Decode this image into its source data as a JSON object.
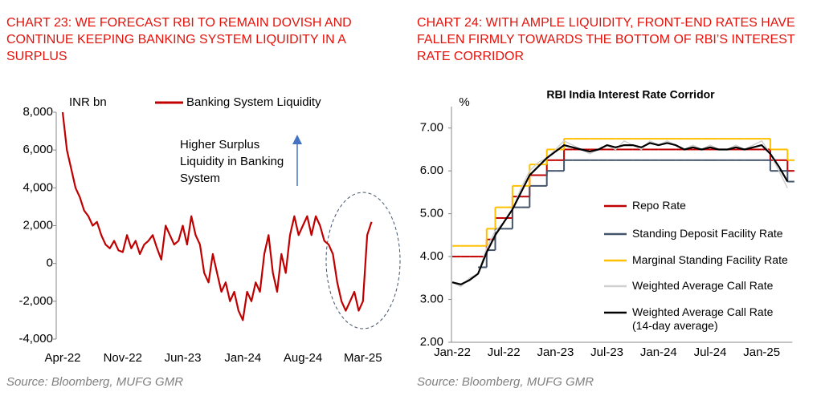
{
  "chart_data": [
    {
      "type": "line",
      "title": "CHART 23: WE FORECAST RBI TO REMAIN DOVISH AND CONTINUE KEEPING BANKING SYSTEM LIQUIDITY IN A SURPLUS",
      "y_label": "INR bn",
      "annotation": "Higher Surplus Liquidity in Banking System",
      "source": "Source: Bloomberg, MUFG GMR",
      "legend": "top",
      "categories": [
        "Apr-22",
        null,
        null,
        null,
        null,
        null,
        null,
        null,
        null,
        null,
        null,
        null,
        null,
        null,
        "Nov-22",
        null,
        null,
        null,
        null,
        null,
        null,
        null,
        null,
        null,
        null,
        null,
        null,
        null,
        "Jun-23",
        null,
        null,
        null,
        null,
        null,
        null,
        null,
        null,
        null,
        null,
        null,
        null,
        null,
        "Jan-24",
        null,
        null,
        null,
        null,
        null,
        null,
        null,
        null,
        null,
        null,
        null,
        null,
        null,
        "Aug-24",
        null,
        null,
        null,
        null,
        null,
        null,
        null,
        null,
        null,
        null,
        null,
        null,
        null,
        "Mar-25",
        null,
        null
      ],
      "series": [
        {
          "name": "Banking System Liquidity",
          "color": "#c00000",
          "values": [
            8000,
            6000,
            5000,
            4000,
            3500,
            2800,
            2500,
            2000,
            2200,
            1500,
            1000,
            800,
            1200,
            700,
            600,
            1500,
            800,
            1200,
            500,
            1000,
            1200,
            1500,
            800,
            200,
            2000,
            1500,
            1000,
            1200,
            2000,
            1000,
            2500,
            1500,
            1000,
            -500,
            -1000,
            500,
            -500,
            -1500,
            -1000,
            -2000,
            -1500,
            -2500,
            -3000,
            -1500,
            -2000,
            -1000,
            -1500,
            500,
            1500,
            -500,
            -1500,
            500,
            -500,
            1500,
            2500,
            1500,
            2000,
            2500,
            1500,
            2500,
            2000,
            1200,
            1000,
            500,
            -1000,
            -2000,
            -2500,
            -2000,
            -1500,
            -2500,
            -2000,
            1500,
            2200
          ]
        }
      ],
      "ylim": [
        -4000,
        8000
      ],
      "yticks": [
        {
          "value": -4000,
          "label": "-4,000"
        },
        {
          "value": -2000,
          "label": "-2,000"
        },
        0,
        {
          "value": 2000,
          "label": "2,000"
        },
        {
          "value": 4000,
          "label": "4,000"
        },
        {
          "value": 6000,
          "label": "6,000"
        },
        {
          "value": 8000,
          "label": "8,000"
        }
      ]
    },
    {
      "type": "line",
      "title": "CHART 24: WITH AMPLE LIQUIDITY, FRONT-END RATES HAVE FALLEN FIRMLY TOWARDS THE BOTTOM OF RBI’S INTEREST RATE CORRIDOR",
      "subtitle": "RBI India Interest Rate Corridor",
      "y_label": "%",
      "source": "Source: Bloomberg, MUFG GMR",
      "legend": "center",
      "categories": [
        "Jan-22",
        null,
        null,
        null,
        null,
        null,
        "Jul-22",
        null,
        null,
        null,
        null,
        null,
        "Jan-23",
        null,
        null,
        null,
        null,
        null,
        "Jul-23",
        null,
        null,
        null,
        null,
        null,
        "Jan-24",
        null,
        null,
        null,
        null,
        null,
        "Jul-24",
        null,
        null,
        null,
        null,
        null,
        "Jan-25",
        null,
        null,
        null
      ],
      "series": [
        {
          "name": "Repo Rate",
          "color": "#c00000",
          "step": true,
          "values": [
            4,
            4,
            4,
            4,
            4.4,
            4.9,
            4.9,
            5.4,
            5.4,
            5.9,
            5.9,
            6.25,
            6.25,
            6.5,
            6.5,
            6.5,
            6.5,
            6.5,
            6.5,
            6.5,
            6.5,
            6.5,
            6.5,
            6.5,
            6.5,
            6.5,
            6.5,
            6.5,
            6.5,
            6.5,
            6.5,
            6.5,
            6.5,
            6.5,
            6.5,
            6.5,
            6.5,
            6.25,
            6.25,
            6
          ]
        },
        {
          "name": "Standing Deposit Facility Rate",
          "color": "#44546a",
          "step": true,
          "values": [
            null,
            null,
            null,
            3.75,
            4.15,
            4.65,
            4.65,
            5.15,
            5.15,
            5.65,
            5.65,
            6,
            6,
            6.25,
            6.25,
            6.25,
            6.25,
            6.25,
            6.25,
            6.25,
            6.25,
            6.25,
            6.25,
            6.25,
            6.25,
            6.25,
            6.25,
            6.25,
            6.25,
            6.25,
            6.25,
            6.25,
            6.25,
            6.25,
            6.25,
            6.25,
            6.25,
            6,
            6,
            5.75
          ]
        },
        {
          "name": "Marginal Standing Facility Rate",
          "color": "#ffc000",
          "step": true,
          "values": [
            4.25,
            4.25,
            4.25,
            4.25,
            4.65,
            5.15,
            5.15,
            5.65,
            5.65,
            6.15,
            6.15,
            6.5,
            6.5,
            6.75,
            6.75,
            6.75,
            6.75,
            6.75,
            6.75,
            6.75,
            6.75,
            6.75,
            6.75,
            6.75,
            6.75,
            6.75,
            6.75,
            6.75,
            6.75,
            6.75,
            6.75,
            6.75,
            6.75,
            6.75,
            6.75,
            6.75,
            6.75,
            6.5,
            6.5,
            6.25
          ]
        },
        {
          "name": "Weighted Average Call Rate",
          "color": "#d0d0d0",
          "values": [
            3.4,
            3.3,
            3.5,
            3.6,
            4.2,
            4.6,
            4.8,
            5.1,
            5.6,
            6,
            6.2,
            6.3,
            6.5,
            6.7,
            6.6,
            6.5,
            6.4,
            6.5,
            6.6,
            6.5,
            6.7,
            6.6,
            6.5,
            6.7,
            6.6,
            6.7,
            6.6,
            6.5,
            6.6,
            6.5,
            6.6,
            6.5,
            6.5,
            6.6,
            6.5,
            6.6,
            6.7,
            6.4,
            6,
            5.6
          ]
        },
        {
          "name": "Weighted Average Call Rate (14-day average)",
          "color": "#000000",
          "values": [
            3.4,
            3.35,
            3.45,
            3.6,
            4.1,
            4.5,
            4.8,
            5.1,
            5.5,
            5.9,
            6.1,
            6.3,
            6.45,
            6.6,
            6.55,
            6.5,
            6.45,
            6.5,
            6.6,
            6.55,
            6.6,
            6.6,
            6.55,
            6.65,
            6.6,
            6.65,
            6.6,
            6.5,
            6.55,
            6.5,
            6.55,
            6.5,
            6.5,
            6.55,
            6.5,
            6.55,
            6.6,
            6.4,
            6.1,
            5.75
          ]
        }
      ],
      "ylim": [
        2,
        7.5
      ],
      "yticks": [
        {
          "value": 2,
          "label": "2.00"
        },
        {
          "value": 3,
          "label": "3.00"
        },
        {
          "value": 4,
          "label": "4.00"
        },
        {
          "value": 5,
          "label": "5.00"
        },
        {
          "value": 6,
          "label": "6.00"
        },
        {
          "value": 7,
          "label": "7.00"
        }
      ]
    }
  ]
}
